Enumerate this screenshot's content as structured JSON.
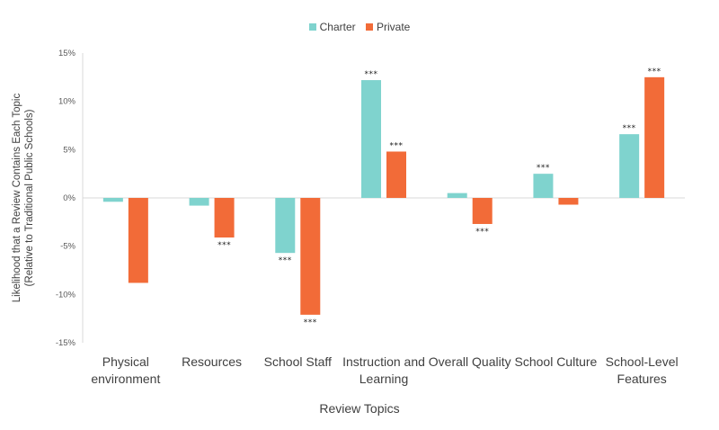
{
  "chart_data": {
    "type": "bar",
    "categories": [
      "Physical environment",
      "Resources",
      "School Staff",
      "Instruction and Learning",
      "Overall Quality",
      "School Culture",
      "School-Level Features"
    ],
    "category_lines": [
      [
        "Physical",
        "environment"
      ],
      [
        "Resources"
      ],
      [
        "School Staff"
      ],
      [
        "Instruction and",
        "Learning"
      ],
      [
        "Overall Quality"
      ],
      [
        "School Culture"
      ],
      [
        "School-Level",
        "Features"
      ]
    ],
    "series": [
      {
        "name": "Charter",
        "color": "#7fd3ce",
        "values": [
          -0.4,
          -0.8,
          -5.7,
          12.2,
          0.5,
          2.5,
          6.6
        ],
        "significance": [
          "",
          "",
          "***",
          "***",
          "",
          "***",
          "***"
        ]
      },
      {
        "name": "Private",
        "color": "#f26b38",
        "values": [
          -8.8,
          -4.1,
          -12.1,
          4.8,
          -2.7,
          -0.7,
          12.5
        ],
        "significance": [
          "",
          "***",
          "***",
          "***",
          "***",
          "",
          "***"
        ]
      }
    ],
    "xlabel": "Review Topics",
    "ylabel_lines": [
      "Likelihood that a Review Contains Each Topic",
      "(Relative to Traditional Public Schools)"
    ],
    "ylim": [
      -15,
      15
    ],
    "yticks": [
      15,
      10,
      5,
      0,
      -5,
      -10,
      -15
    ],
    "ytick_labels": [
      "15%",
      "10%",
      "5%",
      "0%",
      "-5%",
      "-10%",
      "-15%"
    ],
    "grid": false,
    "legend_position": "top-center"
  }
}
